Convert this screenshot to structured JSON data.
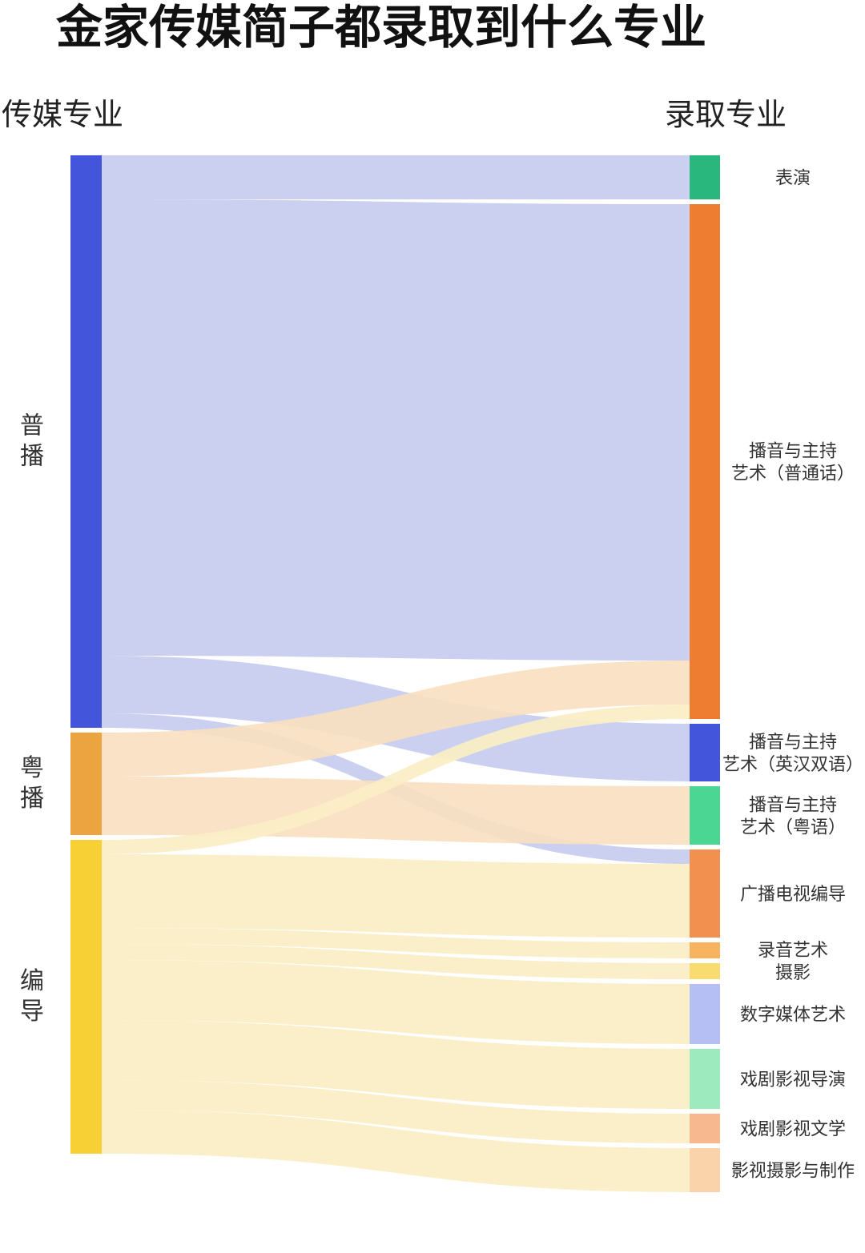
{
  "chart_data": {
    "type": "sankey",
    "title": "金家传媒简子都录取到什么专业",
    "left_header": "传媒专业",
    "right_header": "录取专业",
    "sources": [
      {
        "id": "pubo",
        "label": "普播",
        "color": "#4355DB",
        "link_color": "#C8CCEF"
      },
      {
        "id": "yuebo",
        "label": "粤播",
        "color": "#EBA43F",
        "link_color": "#F8E0C0"
      },
      {
        "id": "biandao",
        "label": "编导",
        "color": "#F6D034",
        "link_color": "#FBEEC4"
      }
    ],
    "targets": [
      {
        "id": "biaoyan",
        "lines": [
          "表演"
        ],
        "color": "#29B77D"
      },
      {
        "id": "bobo_pth",
        "lines": [
          "播音与主持",
          "艺术（普通话）"
        ],
        "color": "#EE7D31"
      },
      {
        "id": "bobo_yh",
        "lines": [
          "播音与主持",
          "艺术（英汉双语）"
        ],
        "color": "#4355DB"
      },
      {
        "id": "bobo_yy",
        "lines": [
          "播音与主持",
          "艺术（粤语）"
        ],
        "color": "#4CD694"
      },
      {
        "id": "gbdsbd",
        "lines": [
          "广播电视编导"
        ],
        "color": "#F2914F"
      },
      {
        "id": "luyin",
        "lines": [],
        "color": "#F7B35D"
      },
      {
        "id": "sheying",
        "lines": [],
        "color": "#F9DC70"
      },
      {
        "id": "shuzi",
        "lines": [
          "数字媒体艺术"
        ],
        "color": "#B5BFF4"
      },
      {
        "id": "xjdy",
        "lines": [
          "戏剧影视导演"
        ],
        "color": "#9DEABF"
      },
      {
        "id": "xjwx",
        "lines": [
          "戏剧影视文学"
        ],
        "color": "#F7B78F"
      },
      {
        "id": "yssy",
        "lines": [
          "影视摄影与制作"
        ],
        "color": "#FBD3AB"
      }
    ],
    "combined_label": [
      "录音艺术",
      "摄影"
    ],
    "links": [
      {
        "source": "pubo",
        "target": "biaoyan",
        "value": 55
      },
      {
        "source": "pubo",
        "target": "bobo_pth",
        "value": 570
      },
      {
        "source": "pubo",
        "target": "bobo_yh",
        "value": 72
      },
      {
        "source": "pubo",
        "target": "gbdsbd",
        "value": 18
      },
      {
        "source": "yuebo",
        "target": "bobo_pth",
        "value": 55
      },
      {
        "source": "yuebo",
        "target": "bobo_yy",
        "value": 73
      },
      {
        "source": "biandao",
        "target": "bobo_pth",
        "value": 18
      },
      {
        "source": "biandao",
        "target": "gbdsbd",
        "value": 92
      },
      {
        "source": "biandao",
        "target": "luyin",
        "value": 20
      },
      {
        "source": "biandao",
        "target": "sheying",
        "value": 20
      },
      {
        "source": "biandao",
        "target": "shuzi",
        "value": 75
      },
      {
        "source": "biandao",
        "target": "xjdy",
        "value": 75
      },
      {
        "source": "biandao",
        "target": "xjwx",
        "value": 37
      },
      {
        "source": "biandao",
        "target": "yssy",
        "value": 55
      }
    ]
  }
}
